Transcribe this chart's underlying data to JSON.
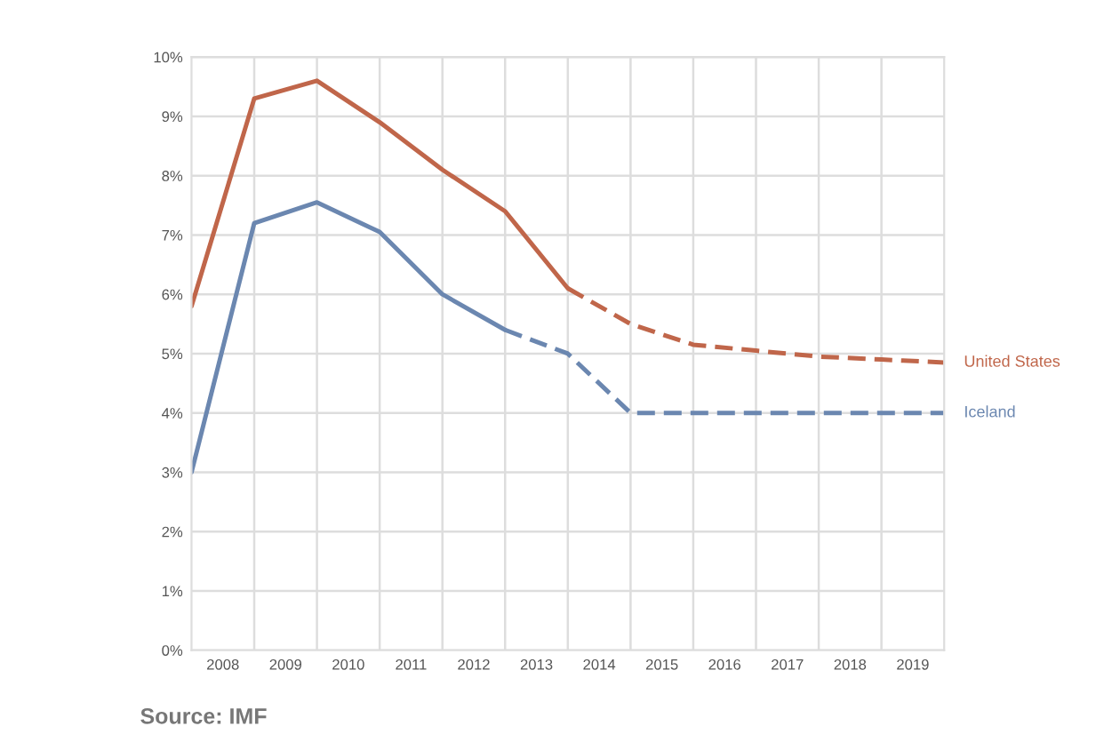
{
  "chart_data": {
    "type": "line",
    "series": [
      {
        "color": "#c0664a",
        "line_style": "solid",
        "x": [
          2008,
          2009,
          2010,
          2011,
          2012,
          2013,
          2014
        ],
        "values": [
          5.8,
          9.3,
          9.6,
          8.9,
          8.1,
          7.4,
          6.1
        ]
      },
      {
        "name": "United States",
        "color": "#c0664a",
        "line_style": "dashed",
        "x": [
          2014,
          2015,
          2016,
          2017,
          2018,
          2019,
          2020
        ],
        "values": [
          6.1,
          5.5,
          5.15,
          5.05,
          4.95,
          4.9,
          4.85
        ]
      },
      {
        "color": "#6b87b0",
        "line_style": "solid",
        "x": [
          2008,
          2009,
          2010,
          2011,
          2012,
          2013
        ],
        "values": [
          3.0,
          7.2,
          7.55,
          7.05,
          6.0,
          5.4
        ]
      },
      {
        "name": "Iceland",
        "color": "#6b87b0",
        "line_style": "dashed",
        "x": [
          2013,
          2014,
          2015,
          2016,
          2017,
          2018,
          2019,
          2020
        ],
        "values": [
          5.4,
          5.0,
          4.0,
          4.0,
          4.0,
          4.0,
          4.0,
          4.0
        ]
      }
    ],
    "xlim": [
      2008,
      2020
    ],
    "xticks": [
      {
        "value": 2008.5,
        "label": "2008"
      },
      {
        "value": 2009.5,
        "label": "2009"
      },
      {
        "value": 2010.5,
        "label": "2010"
      },
      {
        "value": 2011.5,
        "label": "2011"
      },
      {
        "value": 2012.5,
        "label": "2012"
      },
      {
        "value": 2013.5,
        "label": "2013"
      },
      {
        "value": 2014.5,
        "label": "2014"
      },
      {
        "value": 2015.5,
        "label": "2015"
      },
      {
        "value": 2016.5,
        "label": "2016"
      },
      {
        "value": 2017.5,
        "label": "2017"
      },
      {
        "value": 2018.5,
        "label": "2018"
      },
      {
        "value": 2019.5,
        "label": "2019"
      },
      {
        "value": 2009,
        "label": null
      },
      {
        "value": 2010,
        "label": null
      },
      {
        "value": 2011,
        "label": null
      },
      {
        "value": 2012,
        "label": null
      },
      {
        "value": 2013,
        "label": null
      },
      {
        "value": 2014,
        "label": null
      },
      {
        "value": 2015,
        "label": null
      },
      {
        "value": 2016,
        "label": null
      },
      {
        "value": 2017,
        "label": null
      },
      {
        "value": 2018,
        "label": null
      },
      {
        "value": 2019,
        "label": null
      }
    ],
    "ylim": [
      0,
      10
    ],
    "yticks": [
      {
        "value": 0,
        "label": "0%"
      },
      {
        "value": 1,
        "label": "1%"
      },
      {
        "value": 2,
        "label": "2%"
      },
      {
        "value": 3,
        "label": "3%"
      },
      {
        "value": 4,
        "label": "4%"
      },
      {
        "value": 5,
        "label": "5%"
      },
      {
        "value": 6,
        "label": "6%"
      },
      {
        "value": 7,
        "label": "7%"
      },
      {
        "value": 8,
        "label": "8%"
      },
      {
        "value": 9,
        "label": "9%"
      },
      {
        "value": 10,
        "label": "10%"
      }
    ],
    "grid": true,
    "legend": false,
    "annotations": [
      "Source: IMF"
    ]
  }
}
